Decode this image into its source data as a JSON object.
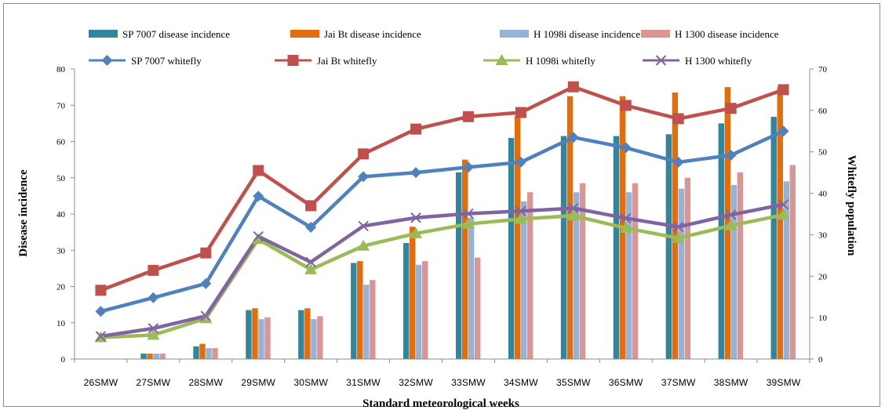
{
  "chart_data": {
    "type": "bar+line",
    "categories": [
      "26SMW",
      "27SMW",
      "28SMW",
      "29SMW",
      "30SMW",
      "31SMW",
      "32SMW",
      "33SMW",
      "34SMW",
      "35SMW",
      "36SMW",
      "37SMW",
      "38SMW",
      "39SMW"
    ],
    "xlabel": "Standard meteorological weeks",
    "ylabel": "Disease incidence",
    "y2label": "Whitefly population",
    "ylim": [
      0,
      80
    ],
    "y2lim": [
      0,
      70
    ],
    "yticks": [
      0,
      10,
      20,
      30,
      40,
      50,
      60,
      70,
      80
    ],
    "y2ticks": [
      0,
      10,
      20,
      30,
      40,
      50,
      60,
      70
    ],
    "grid": false,
    "legend_position": "top",
    "bar_series": [
      {
        "name": "SP 7007 disease incidence",
        "color": "#31859c",
        "values": [
          0,
          1.5,
          3.5,
          13.5,
          13.5,
          26.5,
          32,
          51.5,
          61,
          61.5,
          61.5,
          62,
          65,
          66.8
        ]
      },
      {
        "name": "Jai Bt disease incidence",
        "color": "#e46c0a",
        "values": [
          0,
          1.5,
          4.2,
          14,
          14,
          27,
          36.5,
          55,
          67,
          72.5,
          72.5,
          73.5,
          75,
          75
        ]
      },
      {
        "name": "H 1098i disease incidence",
        "color": "#95b3d7",
        "values": [
          0,
          1.5,
          3,
          11,
          11,
          20.5,
          26,
          39,
          43.5,
          46,
          46,
          47,
          48,
          49
        ]
      },
      {
        "name": "H 1300 disease incidence",
        "color": "#d99694",
        "values": [
          0,
          1.5,
          3,
          11.5,
          11.8,
          21.8,
          27,
          28,
          46,
          48.5,
          48.5,
          50,
          51.5,
          53.5
        ]
      }
    ],
    "line_series": [
      {
        "name": "SP 7007 whitefly",
        "color": "#4f81bd",
        "marker": "diamond",
        "values": [
          11.5,
          14.8,
          18.2,
          39.3,
          31.8,
          44,
          45,
          46.3,
          47.5,
          53.5,
          51,
          47.5,
          49.2,
          55
        ]
      },
      {
        "name": "Jai Bt whitefly",
        "color": "#c0504d",
        "marker": "square",
        "values": [
          16.6,
          21.4,
          25.6,
          45.5,
          37,
          49.5,
          55.5,
          58.5,
          59.5,
          65.7,
          61.2,
          58,
          60.5,
          65
        ]
      },
      {
        "name": "H 1098i whitefly",
        "color": "#9bbb59",
        "marker": "triangle",
        "values": [
          5.2,
          5.8,
          9.8,
          28.9,
          21.6,
          27.3,
          30.3,
          32.6,
          33.8,
          34.6,
          31.6,
          29.2,
          32.2,
          34.8
        ]
      },
      {
        "name": "H 1300 whitefly",
        "color": "#8064a2",
        "marker": "x",
        "values": [
          5.5,
          7.4,
          10.4,
          29.6,
          23.4,
          32.1,
          34.1,
          35.1,
          35.7,
          36.4,
          34,
          31.9,
          34.8,
          37.3
        ]
      }
    ]
  }
}
